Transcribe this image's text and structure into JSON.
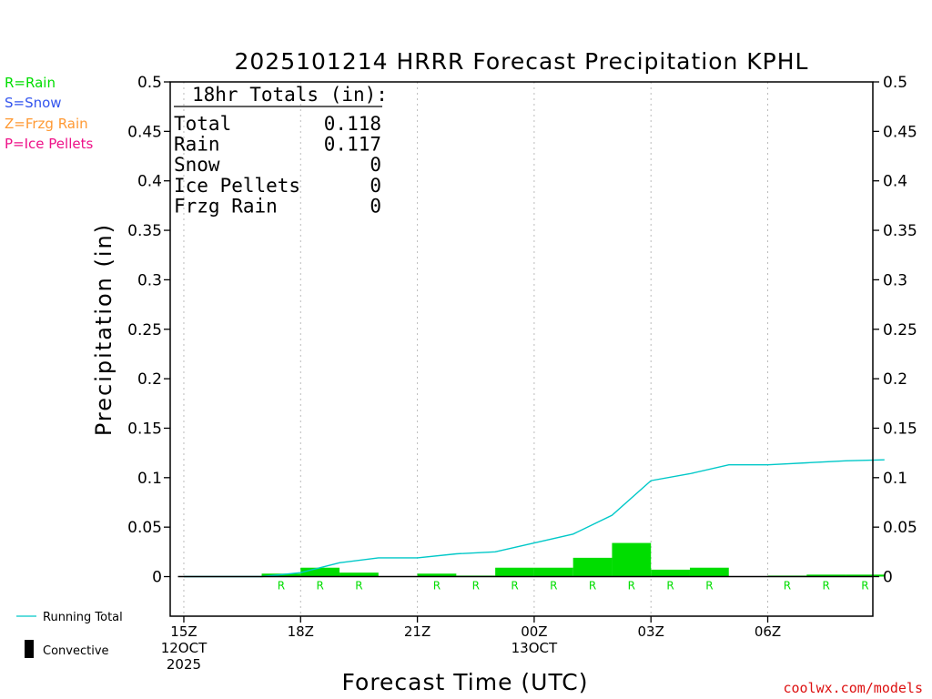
{
  "colors": {
    "rain": "#00dd00",
    "snow": "#3355ee",
    "frzg": "#ff9933",
    "ice": "#ee1188",
    "running": "#00c8c8",
    "convective": "#000000",
    "footer": "#dd1111"
  },
  "legend": {
    "rain": "R=Rain",
    "snow": "S=Snow",
    "frzg": "Z=Frzg Rain",
    "ice": "P=Ice Pellets",
    "running_total": "Running Total",
    "convective": "Convective"
  },
  "totals": {
    "header": "18hr Totals (in):",
    "rows": [
      {
        "label": "Total",
        "value": "0.118"
      },
      {
        "label": "Rain",
        "value": "0.117"
      },
      {
        "label": "Snow",
        "value": "0"
      },
      {
        "label": "Ice Pellets",
        "value": "0"
      },
      {
        "label": "Frzg Rain",
        "value": "0"
      }
    ]
  },
  "footer": "coolwx.com/models",
  "chart_data": {
    "type": "bar",
    "title": "2025101214 HRRR Forecast Precipitation KPHL",
    "xlabel": "Forecast Time (UTC)",
    "ylabel": "Precipitation (in)",
    "ylim": [
      -0.04,
      0.5
    ],
    "xlim": [
      -0.35,
      17.7
    ],
    "y_ticks": [
      "0",
      "0.05",
      "0.1",
      "0.15",
      "0.2",
      "0.25",
      "0.3",
      "0.35",
      "0.4",
      "0.45",
      "0.5"
    ],
    "x_ticks": [
      {
        "hour": 0,
        "lines": [
          "15Z",
          "12OCT",
          "2025"
        ]
      },
      {
        "hour": 3,
        "lines": [
          "18Z"
        ]
      },
      {
        "hour": 6,
        "lines": [
          "21Z"
        ]
      },
      {
        "hour": 9,
        "lines": [
          "00Z",
          "13OCT"
        ]
      },
      {
        "hour": 12,
        "lines": [
          "03Z"
        ]
      },
      {
        "hour": 15,
        "lines": [
          "06Z"
        ]
      }
    ],
    "hourly_precip": {
      "hours": [
        1,
        2,
        3,
        4,
        5,
        6,
        7,
        8,
        9,
        10,
        11,
        12,
        13,
        14,
        15,
        16,
        17,
        18
      ],
      "values": [
        0,
        0,
        0.003,
        0.009,
        0.004,
        0,
        0.003,
        0.001,
        0.009,
        0.009,
        0.019,
        0.034,
        0.007,
        0.009,
        0,
        0.001,
        0.002,
        0.002
      ],
      "type_codes": [
        "",
        "",
        "R",
        "R",
        "R",
        "",
        "R",
        "R",
        "R",
        "R",
        "R",
        "R",
        "R",
        "R",
        "",
        "R",
        "R",
        "R"
      ]
    },
    "running_total": {
      "hours": [
        0,
        1,
        2,
        3,
        4,
        5,
        6,
        7,
        8,
        9,
        10,
        11,
        12,
        13,
        14,
        15,
        16,
        17,
        18
      ],
      "values": [
        0,
        0,
        0,
        0.004,
        0.014,
        0.019,
        0.019,
        0.023,
        0.025,
        0.034,
        0.043,
        0.062,
        0.097,
        0.104,
        0.113,
        0.113,
        0.115,
        0.117,
        0.118
      ]
    }
  }
}
